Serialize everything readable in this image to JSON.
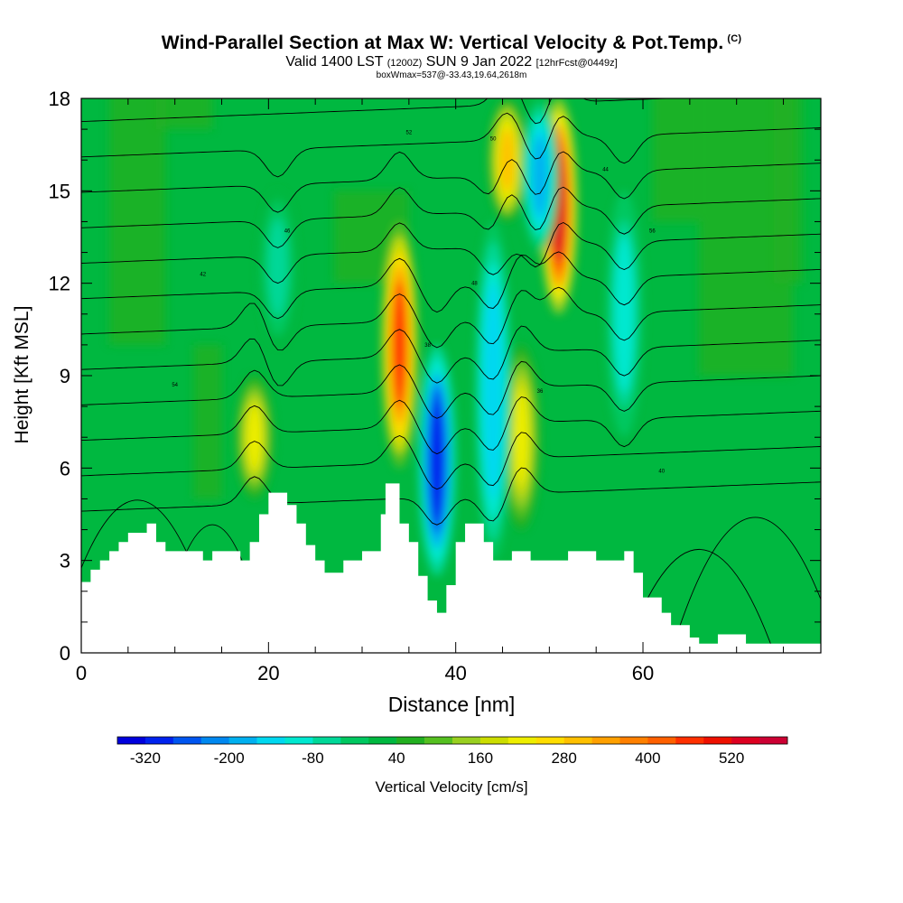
{
  "header": {
    "title": "Wind-Parallel Section at Max W: Vertical Velocity & Pot.Temp.",
    "copyright": "(C)",
    "valid_prefix": "Valid 1400 LST",
    "valid_utc": "(1200Z)",
    "valid_date": "SUN 9 Jan 2022",
    "forecast": "[12hrFcst@0449z]",
    "boxwmax": "boxWmax=537@-33.43,19.64,2618m"
  },
  "chart_data": {
    "type": "heatmap",
    "xlabel": "Distance [nm]",
    "ylabel": "Height [Kft MSL]",
    "xlim": [
      0,
      79
    ],
    "ylim": [
      0,
      18
    ],
    "x_ticks": [
      "0",
      "20",
      "40",
      "60"
    ],
    "y_ticks": [
      "0",
      "3",
      "6",
      "9",
      "12",
      "15",
      "18"
    ],
    "colorbar": {
      "label": "Vertical Velocity [cm/s]",
      "tick_labels": [
        "-320",
        "-200",
        "-80",
        "40",
        "160",
        "280",
        "400",
        "520"
      ],
      "levels": [
        -360,
        -320,
        -280,
        -240,
        -200,
        -160,
        -120,
        -80,
        -40,
        0,
        40,
        80,
        120,
        160,
        200,
        240,
        280,
        320,
        360,
        400,
        440,
        480,
        520,
        560,
        600
      ],
      "colors": [
        "#0000dd",
        "#0022ee",
        "#0055f0",
        "#0088f0",
        "#00b0f0",
        "#00d8f0",
        "#00e8d0",
        "#00d898",
        "#00c860",
        "#00b840",
        "#22b020",
        "#55c020",
        "#99d020",
        "#ccdd00",
        "#eeee00",
        "#ffdd00",
        "#ffc000",
        "#ffa000",
        "#ff8000",
        "#ff6000",
        "#ff3000",
        "#ee1000",
        "#dd0020",
        "#cc0033"
      ]
    },
    "terrain_kft": [
      [
        0,
        2.3
      ],
      [
        1,
        2.7
      ],
      [
        2,
        3.0
      ],
      [
        3,
        3.3
      ],
      [
        4,
        3.6
      ],
      [
        5,
        3.9
      ],
      [
        7,
        4.2
      ],
      [
        8,
        3.6
      ],
      [
        9,
        3.3
      ],
      [
        13,
        3.0
      ],
      [
        14,
        3.3
      ],
      [
        17,
        3.0
      ],
      [
        18,
        3.6
      ],
      [
        19,
        4.5
      ],
      [
        20,
        5.2
      ],
      [
        22,
        4.8
      ],
      [
        23,
        4.2
      ],
      [
        24,
        3.5
      ],
      [
        25,
        3.0
      ],
      [
        26,
        2.6
      ],
      [
        28,
        3.0
      ],
      [
        30,
        3.3
      ],
      [
        31,
        3.3
      ],
      [
        32,
        4.5
      ],
      [
        32.5,
        5.5
      ],
      [
        34,
        4.2
      ],
      [
        35,
        3.6
      ],
      [
        36,
        2.5
      ],
      [
        37,
        1.7
      ],
      [
        38,
        1.3
      ],
      [
        39,
        2.2
      ],
      [
        40,
        3.6
      ],
      [
        41,
        4.2
      ],
      [
        43,
        3.6
      ],
      [
        44,
        3.0
      ],
      [
        46,
        3.3
      ],
      [
        48,
        3.0
      ],
      [
        52,
        3.3
      ],
      [
        55,
        3.0
      ],
      [
        58,
        3.3
      ],
      [
        59,
        2.6
      ],
      [
        60,
        1.8
      ],
      [
        62,
        1.3
      ],
      [
        63,
        0.9
      ],
      [
        65,
        0.5
      ],
      [
        66,
        0.3
      ],
      [
        68,
        0.6
      ],
      [
        71,
        0.3
      ],
      [
        79,
        0.3
      ]
    ],
    "vertical_velocity_features": [
      {
        "x": 34,
        "y_range": [
          6,
          14
        ],
        "w_max": 440
      },
      {
        "x": 51,
        "y_range": [
          11,
          18
        ],
        "w_max": 520
      },
      {
        "x": 45.5,
        "y_range": [
          14,
          18
        ],
        "w_max": 280
      },
      {
        "x": 47,
        "y_range": [
          4,
          10
        ],
        "w_max": 200
      },
      {
        "x": 18.5,
        "y_range": [
          5,
          9
        ],
        "w_max": 200
      },
      {
        "x": 38,
        "y_range": [
          2.5,
          10
        ],
        "w_min": -320
      },
      {
        "x": 44,
        "y_range": [
          3,
          14
        ],
        "w_min": -160
      },
      {
        "x": 49,
        "y_range": [
          13,
          18
        ],
        "w_min": -200
      },
      {
        "x": 21,
        "y_range": [
          10,
          15
        ],
        "w_min": -80
      },
      {
        "x": 58,
        "y_range": [
          7,
          15
        ],
        "w_min": -120
      }
    ],
    "theta_contour_labels": [
      "36",
      "38",
      "40",
      "42",
      "44",
      "46",
      "48",
      "50",
      "52",
      "54",
      "56"
    ]
  }
}
